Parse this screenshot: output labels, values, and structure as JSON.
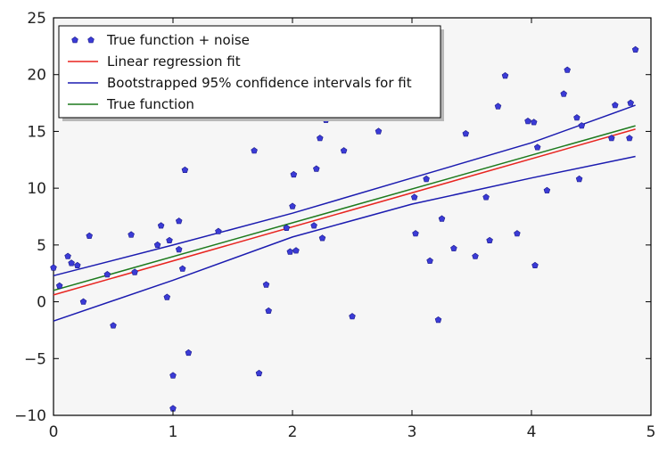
{
  "chart_data": {
    "type": "scatter",
    "title": "",
    "xlabel": "",
    "ylabel": "",
    "xlim": [
      0,
      5
    ],
    "ylim": [
      -10,
      25
    ],
    "xticks": [
      0,
      1,
      2,
      3,
      4,
      5
    ],
    "yticks": [
      -10,
      -5,
      0,
      5,
      10,
      15,
      20,
      25
    ],
    "xtick_labels": [
      "0",
      "1",
      "2",
      "3",
      "4",
      "5"
    ],
    "ytick_labels": [
      "−10",
      "−5",
      "0",
      "5",
      "10",
      "15",
      "20",
      "25"
    ],
    "grid": false,
    "legend_position": "top-left",
    "series": [
      {
        "name": "True function + noise",
        "kind": "points",
        "color": "#3b3bd6",
        "points": [
          [
            0.0,
            3.0
          ],
          [
            0.05,
            1.4
          ],
          [
            0.12,
            4.0
          ],
          [
            0.15,
            3.4
          ],
          [
            0.2,
            3.2
          ],
          [
            0.25,
            0.0
          ],
          [
            0.3,
            5.8
          ],
          [
            0.45,
            2.4
          ],
          [
            0.5,
            -2.1
          ],
          [
            0.65,
            5.9
          ],
          [
            0.68,
            2.6
          ],
          [
            0.87,
            5.0
          ],
          [
            0.9,
            6.7
          ],
          [
            0.95,
            0.4
          ],
          [
            0.97,
            5.4
          ],
          [
            1.0,
            -9.4
          ],
          [
            1.0,
            -6.5
          ],
          [
            1.05,
            7.1
          ],
          [
            1.05,
            4.6
          ],
          [
            1.08,
            2.9
          ],
          [
            1.1,
            11.6
          ],
          [
            1.13,
            -4.5
          ],
          [
            1.38,
            6.2
          ],
          [
            1.68,
            13.3
          ],
          [
            1.72,
            -6.3
          ],
          [
            1.78,
            1.5
          ],
          [
            1.8,
            -0.8
          ],
          [
            1.95,
            6.5
          ],
          [
            1.98,
            4.4
          ],
          [
            2.0,
            8.4
          ],
          [
            2.01,
            11.2
          ],
          [
            2.03,
            4.5
          ],
          [
            2.18,
            6.7
          ],
          [
            2.2,
            11.7
          ],
          [
            2.23,
            14.4
          ],
          [
            2.25,
            5.6
          ],
          [
            2.28,
            16.0
          ],
          [
            2.43,
            13.3
          ],
          [
            2.5,
            -1.3
          ],
          [
            2.72,
            15.0
          ],
          [
            3.02,
            9.2
          ],
          [
            3.03,
            6.0
          ],
          [
            3.12,
            10.8
          ],
          [
            3.15,
            3.6
          ],
          [
            3.22,
            -1.6
          ],
          [
            3.25,
            7.3
          ],
          [
            3.35,
            4.7
          ],
          [
            3.45,
            14.8
          ],
          [
            3.53,
            4.0
          ],
          [
            3.62,
            9.2
          ],
          [
            3.65,
            5.4
          ],
          [
            3.72,
            17.2
          ],
          [
            3.78,
            19.9
          ],
          [
            3.88,
            6.0
          ],
          [
            3.97,
            15.9
          ],
          [
            4.02,
            15.8
          ],
          [
            4.03,
            3.2
          ],
          [
            4.05,
            13.6
          ],
          [
            4.13,
            9.8
          ],
          [
            4.27,
            18.3
          ],
          [
            4.3,
            20.4
          ],
          [
            4.38,
            16.2
          ],
          [
            4.4,
            10.8
          ],
          [
            4.42,
            15.5
          ],
          [
            4.67,
            14.4
          ],
          [
            4.7,
            17.3
          ],
          [
            4.82,
            14.4
          ],
          [
            4.83,
            17.5
          ],
          [
            4.87,
            22.2
          ]
        ]
      },
      {
        "name": "Linear regression fit",
        "kind": "line",
        "color": "#e8241f",
        "points": [
          [
            0.0,
            0.6
          ],
          [
            4.87,
            15.2
          ]
        ]
      },
      {
        "name": "Bootstrapped 95% confidence intervals for fit",
        "kind": "line",
        "color": "#1b1bb0",
        "points": [
          [
            0.0,
            2.3
          ],
          [
            1.0,
            5.0
          ],
          [
            2.0,
            7.8
          ],
          [
            3.0,
            10.9
          ],
          [
            4.0,
            14.0
          ],
          [
            4.87,
            17.3
          ]
        ]
      },
      {
        "name": "",
        "kind": "line",
        "color": "#1b1bb0",
        "points": [
          [
            0.0,
            -1.7
          ],
          [
            1.0,
            1.9
          ],
          [
            2.0,
            5.7
          ],
          [
            3.0,
            8.6
          ],
          [
            4.0,
            10.9
          ],
          [
            4.87,
            12.8
          ]
        ]
      },
      {
        "name": "True function",
        "kind": "line",
        "color": "#1d7a1d",
        "points": [
          [
            0.0,
            1.0
          ],
          [
            4.87,
            15.5
          ]
        ]
      }
    ],
    "legend": [
      {
        "label": "True function + noise",
        "kind": "points",
        "color": "#3b3bd6"
      },
      {
        "label": "Linear regression fit",
        "kind": "line",
        "color": "#e8241f"
      },
      {
        "label": "Bootstrapped 95% confidence intervals for fit",
        "kind": "line",
        "color": "#1b1bb0"
      },
      {
        "label": "True function",
        "kind": "line",
        "color": "#1d7a1d"
      }
    ]
  }
}
